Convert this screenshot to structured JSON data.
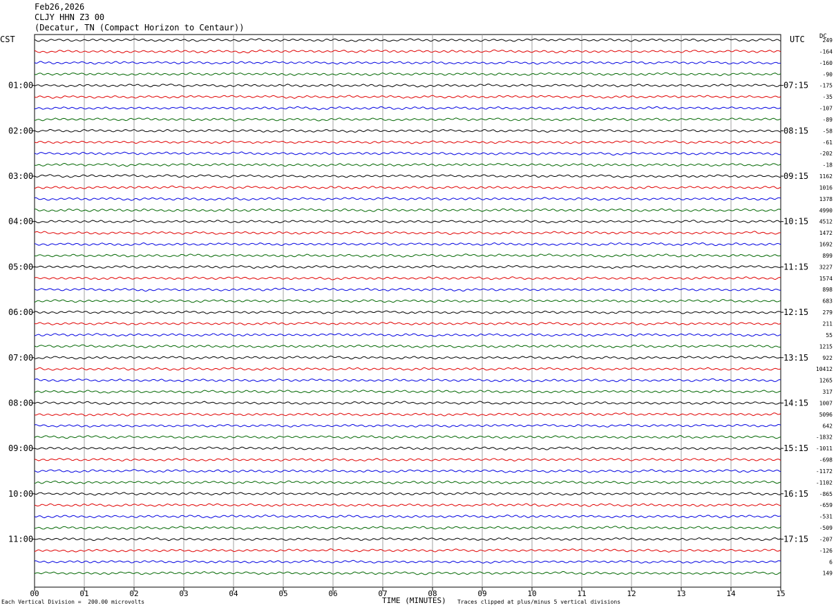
{
  "header": {
    "date": "Feb26,2026",
    "station": "CLJY HHN Z3 00",
    "location": "(Decatur, TN (Compact Horizon to Centaur))"
  },
  "left_tz": "CST",
  "right_tz": "UTC",
  "dc_label": "DC",
  "footer": {
    "scale_note": "Each Vertical Division =  200.00 microvolts",
    "xlabel": "TIME (MINUTES)",
    "clip_note": "Traces clipped at plus/minus 5 vertical divisions"
  },
  "colors": {
    "trace_cycle": [
      "#000000",
      "#e00000",
      "#0000e0",
      "#006600"
    ],
    "grid": "#a0a0a0"
  },
  "chart_data": {
    "type": "line",
    "title": "",
    "xlabel": "TIME (MINUTES)",
    "ylabel": "",
    "xlim": [
      0,
      15
    ],
    "x_ticks": [
      "00",
      "01",
      "02",
      "03",
      "04",
      "05",
      "06",
      "07",
      "08",
      "09",
      "10",
      "11",
      "12",
      "13",
      "14",
      "15"
    ],
    "left_hour_labels": [
      "01:00",
      "02:00",
      "03:00",
      "04:00",
      "05:00",
      "06:00",
      "07:00",
      "08:00",
      "09:00",
      "10:00",
      "11:00"
    ],
    "right_hour_labels": [
      "07:15",
      "08:15",
      "09:15",
      "10:15",
      "11:15",
      "12:15",
      "13:15",
      "14:15",
      "15:15",
      "16:15",
      "17:15"
    ],
    "dc_offsets": [
      249,
      -164,
      -160,
      -90,
      -175,
      -35,
      -107,
      -89,
      -58,
      -61,
      -202,
      -18,
      1162,
      1016,
      1378,
      4990,
      4512,
      1472,
      1692,
      899,
      3227,
      1574,
      898,
      683,
      279,
      211,
      55,
      1215,
      922,
      10412,
      1265,
      317,
      1007,
      5096,
      642,
      -1832,
      -1011,
      -698,
      -1172,
      -1102,
      -865,
      -659,
      -531,
      -509,
      -207,
      -126,
      6,
      149
    ],
    "trace_count": 48,
    "traces_per_hour": 4,
    "minutes_per_trace": 15,
    "grid": true
  }
}
